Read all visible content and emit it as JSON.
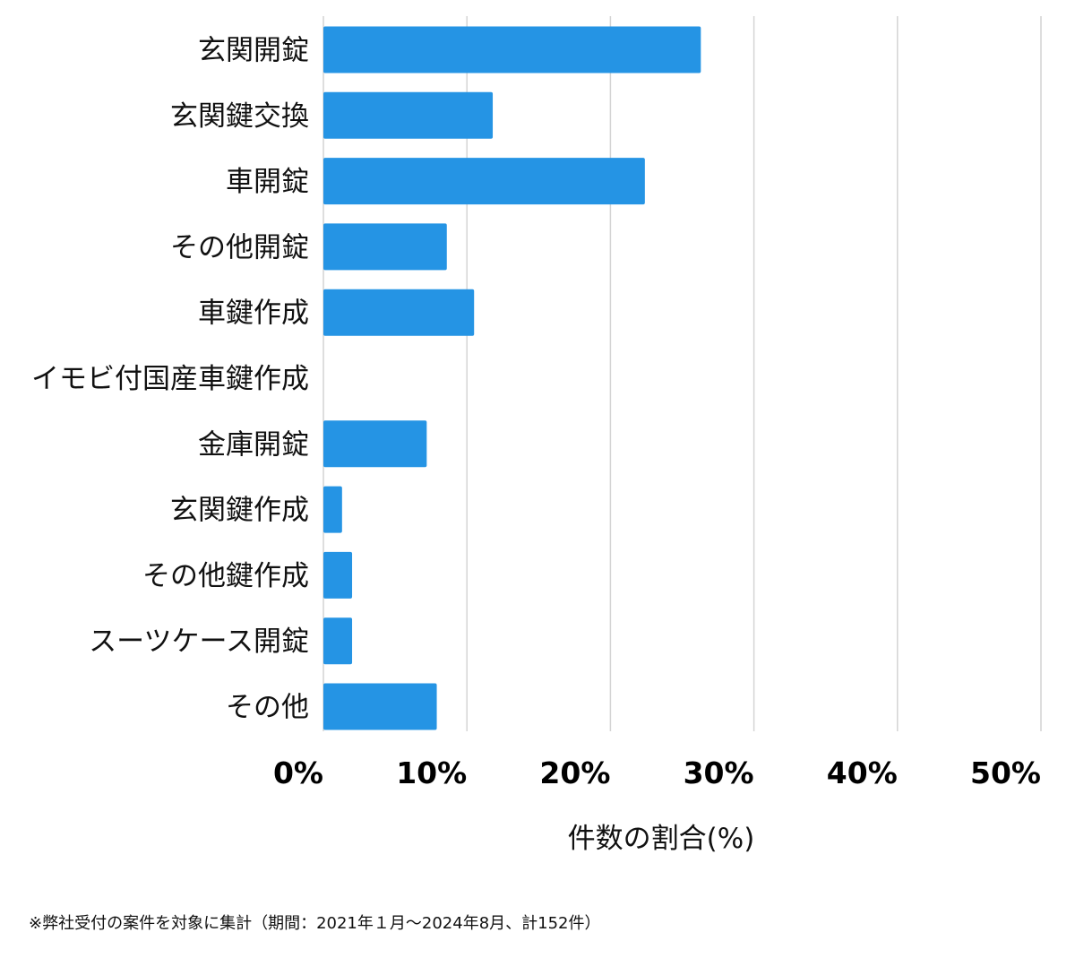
{
  "chart_data": {
    "type": "bar",
    "orientation": "horizontal",
    "categories": [
      "玄関開錠",
      "玄関鍵交換",
      "車開錠",
      "その他開錠",
      "車鍵作成",
      "イモビ付国産車鍵作成",
      "金庫開錠",
      "玄関鍵作成",
      "その他鍵作成",
      "スーツケース開錠",
      "その他"
    ],
    "values": [
      26.3,
      11.8,
      22.4,
      8.6,
      10.5,
      0,
      7.2,
      1.3,
      2.0,
      2.0,
      7.9
    ],
    "xlabel": "件数の割合(%)",
    "xlim": [
      0,
      50
    ],
    "x_ticks": [
      0,
      10,
      20,
      30,
      40,
      50
    ],
    "x_tick_labels": [
      "0%",
      "10%",
      "20%",
      "30%",
      "40%",
      "50%"
    ],
    "grid": "vertical",
    "bar_color": "#2594e4",
    "grid_color": "#d4d4d4"
  },
  "footnote": "※弊社受付の案件を対象に集計（期間：2021年１月〜2024年8月、計152件）"
}
